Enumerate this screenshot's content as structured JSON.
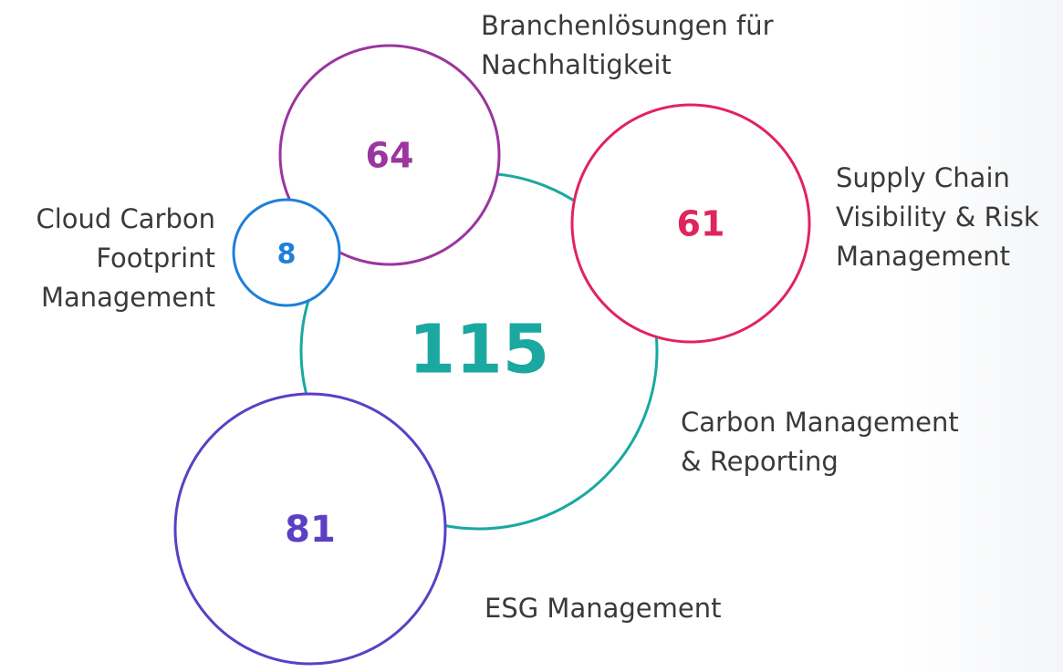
{
  "nodes": [
    {
      "value": 115,
      "label": [
        "Carbon Management",
        "& Reporting"
      ],
      "color": "#1aa8a0"
    },
    {
      "value": 64,
      "label": [
        "Branchenlösungen für",
        "Nachhaltigkeit"
      ],
      "color": "#9b35a0"
    },
    {
      "value": 8,
      "label": [
        "Cloud Carbon",
        "Footprint",
        "Management"
      ],
      "color": "#1e7fd9"
    },
    {
      "value": 61,
      "label": [
        "Supply Chain",
        "Visibility & Risk",
        "Management"
      ],
      "color": "#e0245e"
    },
    {
      "value": 81,
      "label": [
        "ESG Management"
      ],
      "color": "#5b3fc4"
    }
  ]
}
